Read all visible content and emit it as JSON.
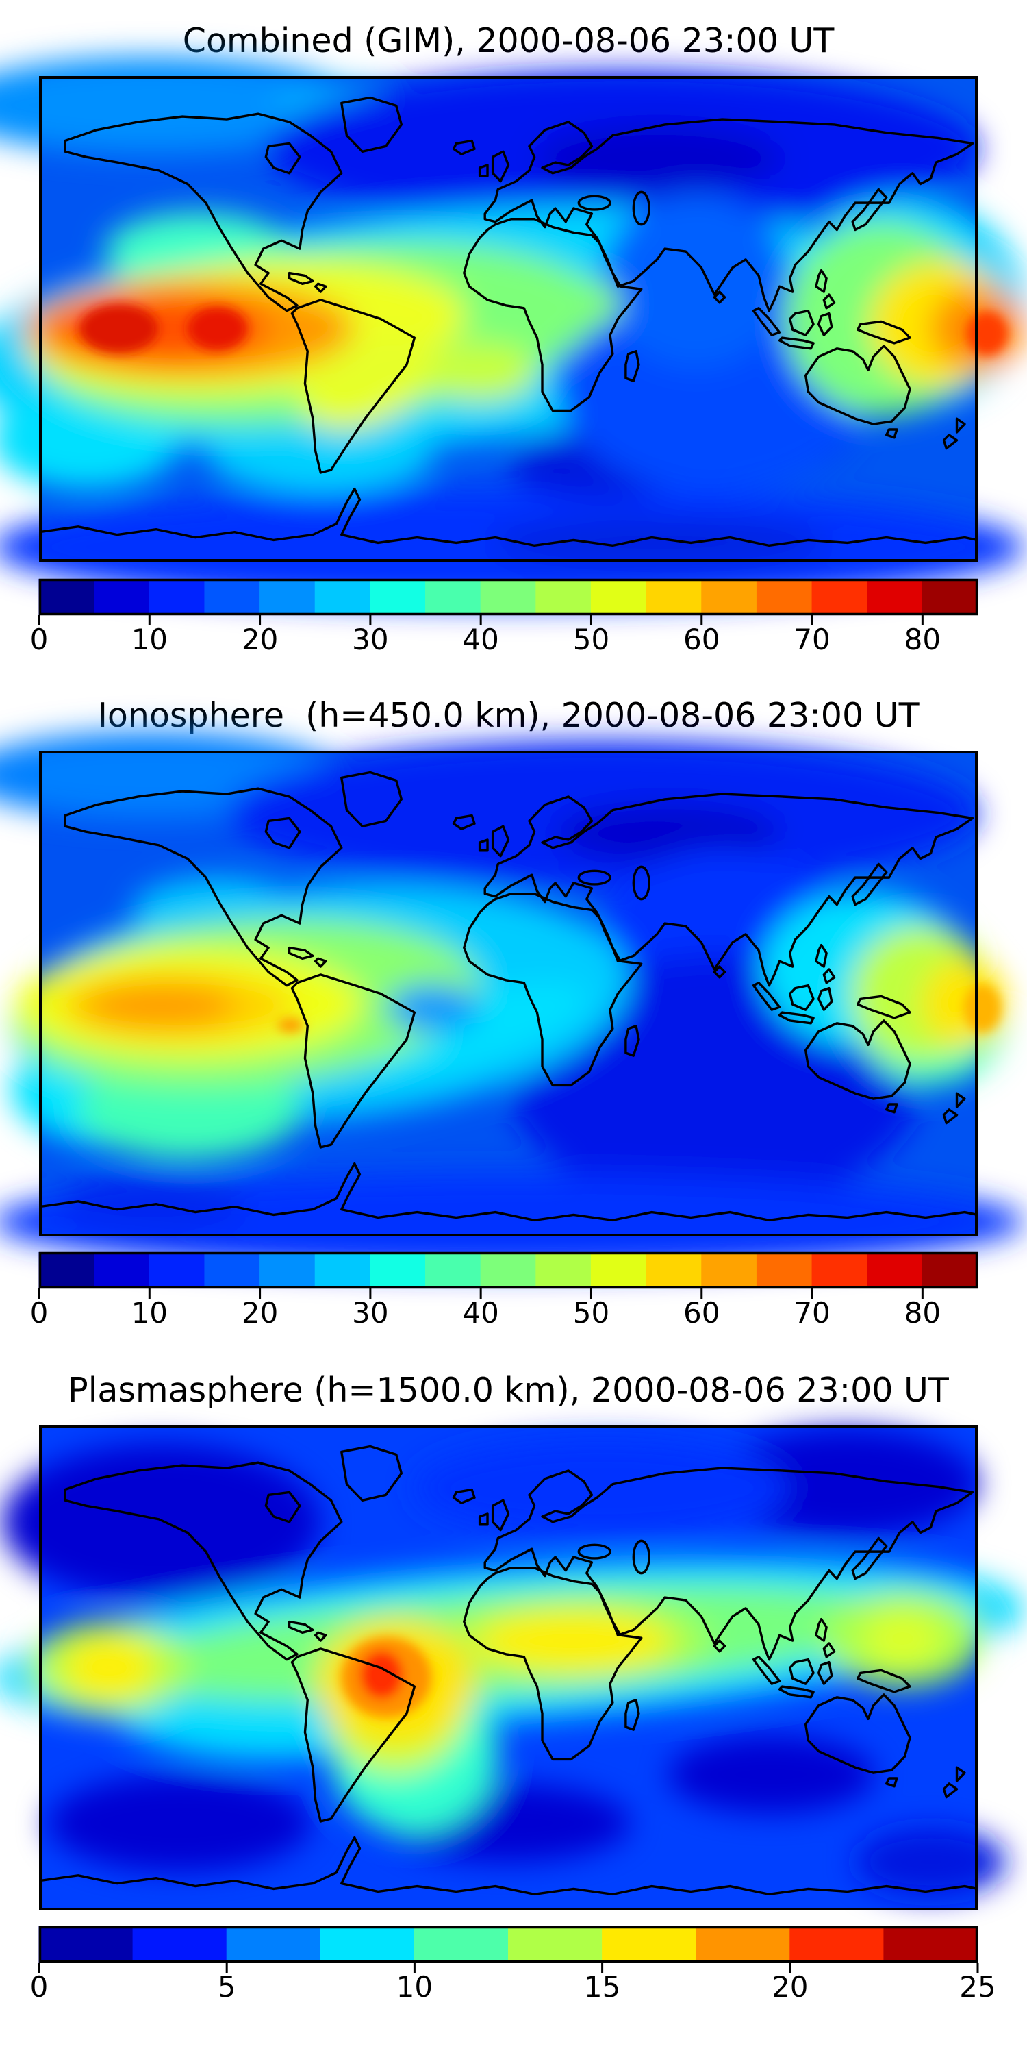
{
  "figure": {
    "background": "#ffffff",
    "frame_color": "#000000",
    "coastline_color": "#000000"
  },
  "chart_data": [
    {
      "type": "heatmap",
      "subtype": "filled_contour_world_map",
      "title": "Combined (GIM), 2000-08-06 23:00 UT",
      "projection": "equirectangular",
      "lon_range": [
        -180,
        180
      ],
      "lat_range": [
        -90,
        90
      ],
      "colormap": "jet",
      "levels": {
        "min": 0,
        "max": 85,
        "step": 5
      },
      "colorbar": {
        "orientation": "horizontal",
        "ticks": [
          0,
          10,
          20,
          30,
          40,
          50,
          60,
          70,
          80
        ],
        "colors": [
          "#000092",
          "#0000da",
          "#0023ff",
          "#0057ff",
          "#0090ff",
          "#00c8ff",
          "#12ffe4",
          "#49ffad",
          "#7dff7a",
          "#b0ff47",
          "#e1ff16",
          "#ffd500",
          "#ffa300",
          "#ff6c00",
          "#ff3000",
          "#e00000",
          "#9d0000"
        ]
      },
      "hotspots": [
        {
          "region": "eastern equatorial Pacific west of Peru",
          "approx_value": 84
        },
        {
          "region": "central equatorial Pacific second core",
          "approx_value": 80
        },
        {
          "region": "western Pacific at right map edge, equator",
          "approx_value": 72
        },
        {
          "region": "northern Eurasia minimum",
          "approx_value": 6
        },
        {
          "region": "southern Indian Ocean minimum",
          "approx_value": 9
        }
      ],
      "map": {
        "base_color": "#0055f2",
        "blobs": [
          [
            0.12,
            0.06,
            0.22,
            0.1,
            "#0090ff",
            0,
            "s"
          ],
          [
            0.33,
            0.07,
            0.08,
            0.05,
            "#00b4ff",
            0,
            "s"
          ],
          [
            0.62,
            0.15,
            0.38,
            0.16,
            "#0018f0",
            0,
            "s"
          ],
          [
            0.66,
            0.17,
            0.13,
            0.07,
            "#0000cc",
            0,
            "s"
          ],
          [
            0.5,
            0.97,
            0.55,
            0.12,
            "#0030ff",
            0,
            "s"
          ],
          [
            0.6,
            0.8,
            0.1,
            0.07,
            "#0018dd",
            0,
            "s"
          ],
          [
            0.79,
            0.76,
            0.07,
            0.05,
            "#0018dd",
            0,
            "s"
          ],
          [
            0.66,
            0.96,
            0.18,
            0.05,
            "#0020e0",
            0,
            "s"
          ],
          [
            0.42,
            0.52,
            0.5,
            0.24,
            "#00d4ff",
            -5,
            "s"
          ],
          [
            0.92,
            0.47,
            0.13,
            0.22,
            "#00d4ff",
            0,
            "s"
          ],
          [
            0.72,
            0.62,
            0.17,
            0.24,
            "#0048ff",
            0,
            "s"
          ],
          [
            0.7,
            0.42,
            0.1,
            0.18,
            "#0060ff",
            0,
            "s"
          ],
          [
            0.17,
            0.36,
            0.1,
            0.08,
            "#40ffc8",
            0,
            "s"
          ],
          [
            0.05,
            0.75,
            0.1,
            0.1,
            "#00e0ff",
            0,
            "s"
          ],
          [
            0.3,
            0.78,
            0.12,
            0.08,
            "#00d0ff",
            0,
            "s"
          ],
          [
            0.55,
            0.47,
            0.07,
            0.06,
            "#8cff73",
            0,
            "s"
          ],
          [
            0.3,
            0.53,
            0.3,
            0.18,
            "#7dff7a",
            -6,
            "s"
          ],
          [
            0.47,
            0.61,
            0.06,
            0.06,
            "#c8ff3c",
            0,
            "s"
          ],
          [
            0.22,
            0.52,
            0.235,
            0.135,
            "#eeff20",
            -4,
            "s"
          ],
          [
            0.35,
            0.63,
            0.075,
            0.085,
            "#e6ff2a",
            -25,
            "s"
          ],
          [
            0.16,
            0.52,
            0.175,
            0.1,
            "#ff9800",
            0,
            "s"
          ],
          [
            0.13,
            0.52,
            0.115,
            0.068,
            "#ff4f00",
            0,
            "s"
          ],
          [
            0.085,
            0.52,
            0.042,
            0.05,
            "#dd1500",
            0,
            "h"
          ],
          [
            0.19,
            0.52,
            0.032,
            0.045,
            "#e81800",
            0,
            "h"
          ],
          [
            0.9,
            0.5,
            0.105,
            0.2,
            "#7dff7a",
            0,
            "s"
          ],
          [
            0.96,
            0.51,
            0.075,
            0.13,
            "#ffe600",
            0,
            "s"
          ],
          [
            1.0,
            0.52,
            0.05,
            0.085,
            "#ff8c00",
            0,
            "s"
          ],
          [
            1.01,
            0.53,
            0.022,
            0.045,
            "#ff3c00",
            0,
            "h"
          ]
        ]
      }
    },
    {
      "type": "heatmap",
      "subtype": "filled_contour_world_map",
      "title": "Ionosphere  (h=450.0 km), 2000-08-06 23:00 UT",
      "projection": "equirectangular",
      "lon_range": [
        -180,
        180
      ],
      "lat_range": [
        -90,
        90
      ],
      "colormap": "jet",
      "levels": {
        "min": 0,
        "max": 85,
        "step": 5
      },
      "colorbar": {
        "orientation": "horizontal",
        "ticks": [
          0,
          10,
          20,
          30,
          40,
          50,
          60,
          70,
          80
        ],
        "colors": [
          "#000092",
          "#0000da",
          "#0023ff",
          "#0057ff",
          "#0090ff",
          "#00c8ff",
          "#12ffe4",
          "#49ffad",
          "#7dff7a",
          "#b0ff47",
          "#e1ff16",
          "#ffd500",
          "#ffa300",
          "#ff6c00",
          "#ff3000",
          "#e00000",
          "#9d0000"
        ]
      },
      "hotspots": [
        {
          "region": "eastern equatorial Pacific west of Peru",
          "approx_value": 65
        },
        {
          "region": "western Pacific at right map edge, equator",
          "approx_value": 60
        },
        {
          "region": "Indian Ocean minimum",
          "approx_value": 5
        },
        {
          "region": "northern Eurasia minimum",
          "approx_value": 6
        }
      ],
      "map": {
        "base_color": "#0052f2",
        "blobs": [
          [
            0.12,
            0.05,
            0.2,
            0.09,
            "#0080ff",
            0,
            "s"
          ],
          [
            0.6,
            0.13,
            0.4,
            0.15,
            "#0020f5",
            0,
            "s"
          ],
          [
            0.67,
            0.17,
            0.12,
            0.06,
            "#0000cc",
            0,
            "s"
          ],
          [
            0.73,
            0.4,
            0.14,
            0.2,
            "#0030ff",
            0,
            "s"
          ],
          [
            0.72,
            0.68,
            0.22,
            0.26,
            "#0018e8",
            0,
            "s"
          ],
          [
            0.5,
            0.97,
            0.55,
            0.1,
            "#0030ff",
            0,
            "s"
          ],
          [
            0.12,
            0.93,
            0.1,
            0.06,
            "#0028f0",
            0,
            "s"
          ],
          [
            0.3,
            0.52,
            0.33,
            0.24,
            "#00ccff",
            -5,
            "s"
          ],
          [
            0.46,
            0.57,
            0.13,
            0.07,
            "#00e0ff",
            -15,
            "s"
          ],
          [
            0.88,
            0.45,
            0.11,
            0.16,
            "#00e0ff",
            0,
            "s"
          ],
          [
            0.95,
            0.55,
            0.08,
            0.14,
            "#40ffc0",
            0,
            "s"
          ],
          [
            0.1,
            0.7,
            0.13,
            0.12,
            "#00e4ff",
            0,
            "s"
          ],
          [
            0.16,
            0.74,
            0.12,
            0.1,
            "#40ffb8",
            0,
            "s"
          ],
          [
            0.19,
            0.33,
            0.09,
            0.07,
            "#00c8ff",
            0,
            "s"
          ],
          [
            0.22,
            0.52,
            0.25,
            0.17,
            "#8aff70",
            -5,
            "s"
          ],
          [
            0.16,
            0.52,
            0.185,
            0.115,
            "#f0ff14",
            0,
            "s"
          ],
          [
            0.145,
            0.525,
            0.125,
            0.07,
            "#ffd200",
            0,
            "s"
          ],
          [
            0.128,
            0.525,
            0.082,
            0.047,
            "#ff9d00",
            0,
            "s"
          ],
          [
            0.268,
            0.565,
            0.014,
            0.015,
            "#ff9d00",
            0,
            "h"
          ],
          [
            0.42,
            0.53,
            0.05,
            0.05,
            "#0096ff",
            0,
            "s"
          ],
          [
            0.94,
            0.5,
            0.075,
            0.14,
            "#c0ff40",
            0,
            "s"
          ],
          [
            0.985,
            0.52,
            0.045,
            0.09,
            "#ffe600",
            0,
            "s"
          ],
          [
            1.005,
            0.53,
            0.02,
            0.05,
            "#ffb400",
            0,
            "h"
          ]
        ]
      }
    },
    {
      "type": "heatmap",
      "subtype": "filled_contour_world_map",
      "title": "Plasmasphere (h=1500.0 km), 2000-08-06 23:00 UT",
      "projection": "equirectangular",
      "lon_range": [
        -180,
        180
      ],
      "lat_range": [
        -90,
        90
      ],
      "colormap": "jet",
      "levels": {
        "min": 0,
        "max": 25,
        "step": 2.5
      },
      "colorbar": {
        "orientation": "horizontal",
        "ticks": [
          0,
          5,
          10,
          15,
          20,
          25
        ],
        "colors": [
          "#0000ad",
          "#0017ff",
          "#0080ff",
          "#00e4ff",
          "#4dffaa",
          "#b0ff47",
          "#ffe900",
          "#ff9400",
          "#ff2b00",
          "#b20000"
        ]
      },
      "hotspots": [
        {
          "region": "South America (Peru/Brazil) core",
          "approx_value": 22
        },
        {
          "region": "north equatorial Africa band",
          "approx_value": 17
        },
        {
          "region": "left map edge equatorial Pacific",
          "approx_value": 16
        },
        {
          "region": "western Pacific near right edge",
          "approx_value": 14
        },
        {
          "region": "high-latitude minima (navy patches)",
          "approx_value": 2
        }
      ],
      "map": {
        "base_color": "#0040ff",
        "blobs": [
          [
            0.13,
            0.2,
            0.17,
            0.16,
            "#0000d2",
            0,
            "s"
          ],
          [
            0.86,
            0.12,
            0.14,
            0.11,
            "#0000d2",
            0,
            "s"
          ],
          [
            0.6,
            0.13,
            0.2,
            0.1,
            "#0030ff",
            0,
            "s"
          ],
          [
            0.15,
            0.82,
            0.14,
            0.1,
            "#0000d2",
            0,
            "s"
          ],
          [
            0.5,
            0.82,
            0.13,
            0.08,
            "#0000d2",
            0,
            "s"
          ],
          [
            0.78,
            0.72,
            0.11,
            0.08,
            "#0000d2",
            0,
            "s"
          ],
          [
            0.95,
            0.9,
            0.08,
            0.07,
            "#0018e0",
            0,
            "s"
          ],
          [
            0.5,
            0.45,
            0.55,
            0.16,
            "#00dcff",
            -4,
            "s"
          ],
          [
            0.25,
            0.57,
            0.18,
            0.12,
            "#00dcff",
            0,
            "s"
          ],
          [
            0.4,
            0.68,
            0.09,
            0.16,
            "#30ffd0",
            -10,
            "s"
          ],
          [
            0.5,
            0.45,
            0.42,
            0.105,
            "#77ff80",
            -4,
            "s"
          ],
          [
            0.38,
            0.58,
            0.075,
            0.14,
            "#ccff33",
            -8,
            "s"
          ],
          [
            0.57,
            0.445,
            0.145,
            0.085,
            "#a8ff4d",
            0,
            "s"
          ],
          [
            0.57,
            0.445,
            0.105,
            0.06,
            "#fff000",
            0,
            "s"
          ],
          [
            0.075,
            0.5,
            0.085,
            0.095,
            "#b4ff45",
            0,
            "s"
          ],
          [
            0.075,
            0.5,
            0.048,
            0.062,
            "#fff000",
            0,
            "s"
          ],
          [
            0.92,
            0.44,
            0.085,
            0.1,
            "#a8ff4d",
            0,
            "s"
          ],
          [
            0.92,
            0.44,
            0.042,
            0.055,
            "#ddff2a",
            0,
            "s"
          ],
          [
            0.38,
            0.53,
            0.085,
            0.13,
            "#ffe400",
            0,
            "s"
          ],
          [
            0.37,
            0.52,
            0.048,
            0.083,
            "#ff9100",
            0,
            "h"
          ],
          [
            0.365,
            0.515,
            0.023,
            0.05,
            "#ff2f00",
            0,
            "h"
          ]
        ]
      }
    }
  ]
}
